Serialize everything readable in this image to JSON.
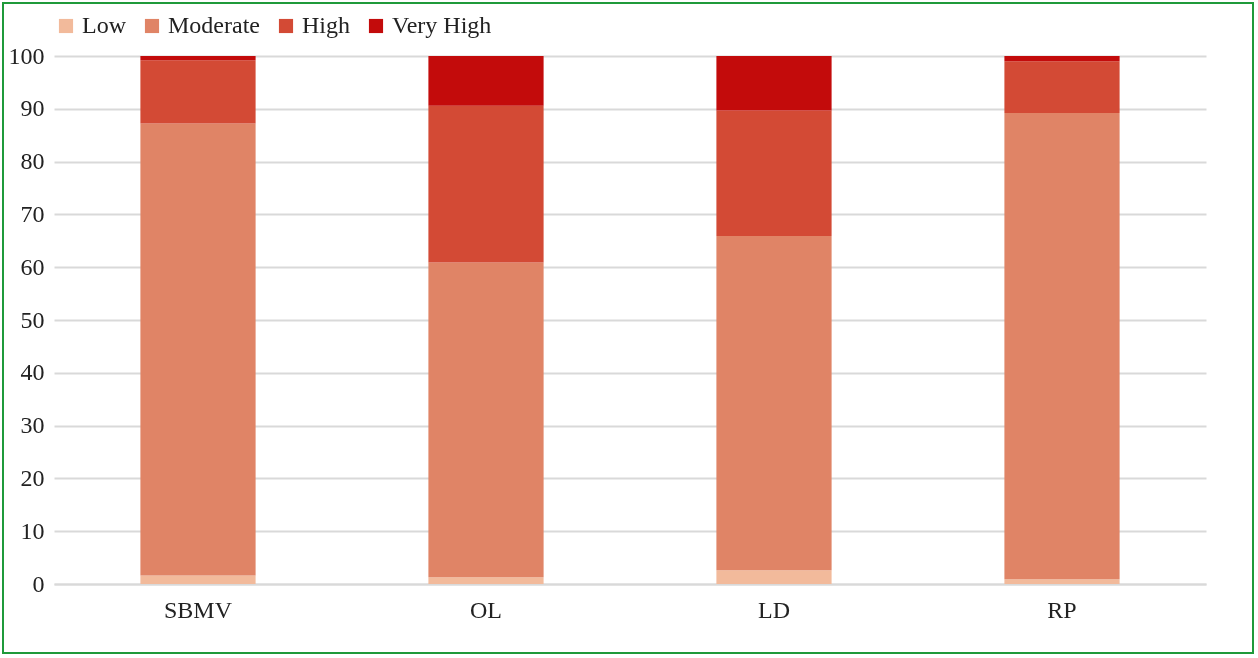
{
  "chart_data": {
    "type": "bar",
    "stacked": true,
    "categories": [
      "SBMV",
      "OL",
      "LD",
      "RP"
    ],
    "series": [
      {
        "name": "Low",
        "color": "#f2ba9b",
        "values": [
          1.6,
          1.3,
          2.6,
          0.9
        ]
      },
      {
        "name": "Moderate",
        "color": "#e08466",
        "values": [
          85.6,
          59.6,
          63.3,
          88.3
        ]
      },
      {
        "name": "High",
        "color": "#d34a35",
        "values": [
          12.0,
          29.7,
          23.8,
          9.8
        ]
      },
      {
        "name": "Very High",
        "color": "#c30b0b",
        "values": [
          0.8,
          9.4,
          10.3,
          1.0
        ]
      }
    ],
    "ylim": [
      0,
      100
    ],
    "yticks": [
      0,
      10,
      20,
      30,
      40,
      50,
      60,
      70,
      80,
      90,
      100
    ],
    "grid": "y",
    "legend": "top"
  }
}
